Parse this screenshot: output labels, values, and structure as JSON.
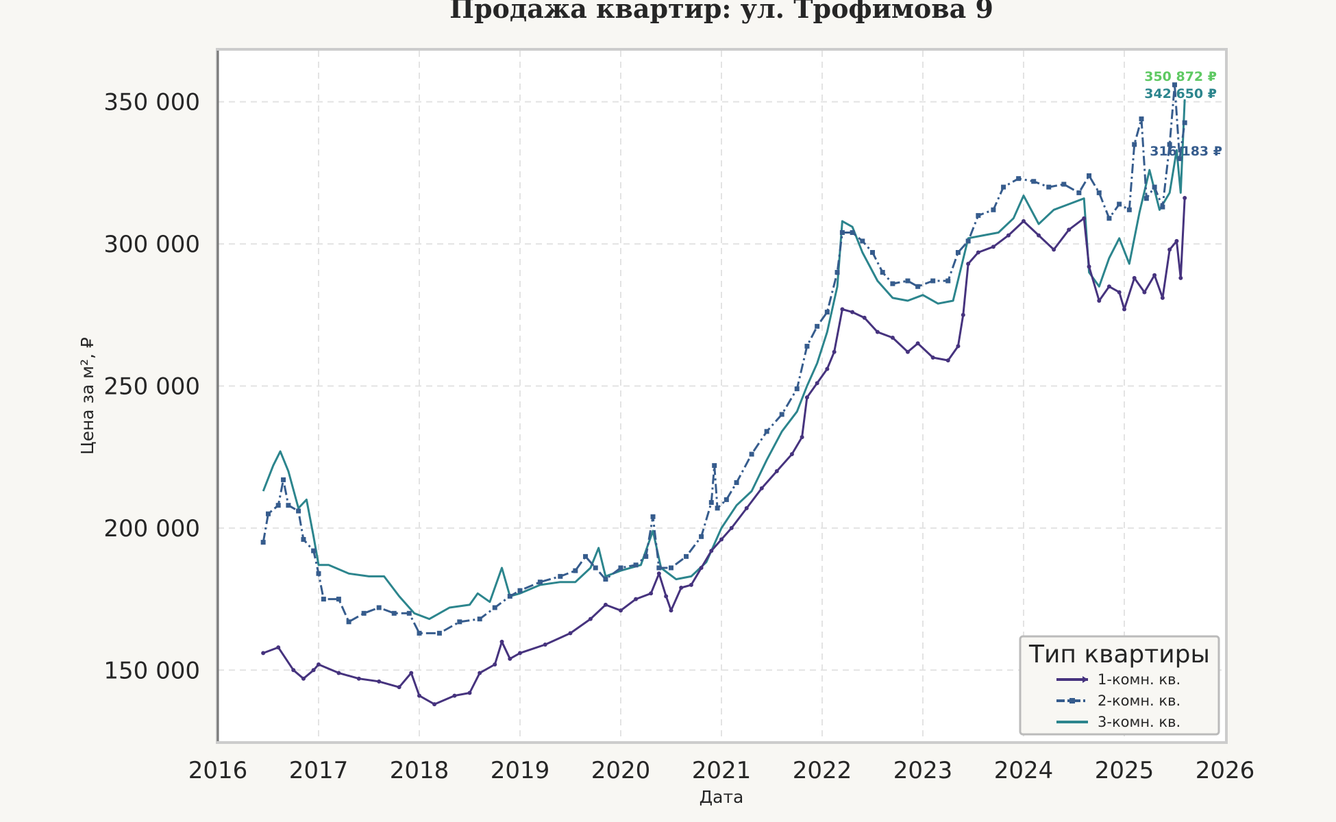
{
  "chart_data": {
    "type": "line",
    "title": "Продажа квартир: ул. Трофимова 9",
    "xlabel": "Дата",
    "ylabel": "Цена за м², ₽",
    "xlim": [
      2016,
      2026
    ],
    "ylim": [
      125000,
      368000
    ],
    "x_ticks": [
      "2016",
      "2017",
      "2018",
      "2019",
      "2020",
      "2021",
      "2022",
      "2023",
      "2024",
      "2025",
      "2026"
    ],
    "y_ticks": [
      {
        "value": 150000,
        "label": "150 000"
      },
      {
        "value": 200000,
        "label": "200 000"
      },
      {
        "value": 250000,
        "label": "250 000"
      },
      {
        "value": 300000,
        "label": "300 000"
      },
      {
        "value": 350000,
        "label": "350 000"
      }
    ],
    "grid": true,
    "legend": {
      "title": "Тип квартиры",
      "position": "lower-right"
    },
    "series": [
      {
        "name": "1-комн. кв.",
        "color": "#46337e",
        "style": "solid-marker",
        "end_label": "316 183 ₽",
        "points": [
          [
            2016.45,
            156000
          ],
          [
            2016.6,
            158000
          ],
          [
            2016.75,
            150000
          ],
          [
            2016.85,
            147000
          ],
          [
            2016.95,
            150000
          ],
          [
            2017.0,
            152000
          ],
          [
            2017.2,
            149000
          ],
          [
            2017.4,
            147000
          ],
          [
            2017.6,
            146000
          ],
          [
            2017.8,
            144000
          ],
          [
            2017.92,
            149000
          ],
          [
            2018.0,
            141000
          ],
          [
            2018.15,
            138000
          ],
          [
            2018.35,
            141000
          ],
          [
            2018.5,
            142000
          ],
          [
            2018.6,
            149000
          ],
          [
            2018.75,
            152000
          ],
          [
            2018.82,
            160000
          ],
          [
            2018.9,
            154000
          ],
          [
            2019.0,
            156000
          ],
          [
            2019.25,
            159000
          ],
          [
            2019.5,
            163000
          ],
          [
            2019.7,
            168000
          ],
          [
            2019.85,
            173000
          ],
          [
            2020.0,
            171000
          ],
          [
            2020.15,
            175000
          ],
          [
            2020.3,
            177000
          ],
          [
            2020.38,
            184000
          ],
          [
            2020.45,
            176000
          ],
          [
            2020.5,
            171000
          ],
          [
            2020.6,
            179000
          ],
          [
            2020.7,
            180000
          ],
          [
            2020.8,
            186000
          ],
          [
            2020.9,
            192000
          ],
          [
            2021.0,
            196000
          ],
          [
            2021.1,
            200000
          ],
          [
            2021.25,
            207000
          ],
          [
            2021.4,
            214000
          ],
          [
            2021.55,
            220000
          ],
          [
            2021.7,
            226000
          ],
          [
            2021.8,
            232000
          ],
          [
            2021.85,
            246000
          ],
          [
            2021.95,
            251000
          ],
          [
            2022.05,
            256000
          ],
          [
            2022.12,
            262000
          ],
          [
            2022.2,
            277000
          ],
          [
            2022.3,
            276000
          ],
          [
            2022.42,
            274000
          ],
          [
            2022.55,
            269000
          ],
          [
            2022.7,
            267000
          ],
          [
            2022.85,
            262000
          ],
          [
            2022.95,
            265000
          ],
          [
            2023.1,
            260000
          ],
          [
            2023.25,
            259000
          ],
          [
            2023.35,
            264000
          ],
          [
            2023.4,
            275000
          ],
          [
            2023.45,
            293000
          ],
          [
            2023.55,
            297000
          ],
          [
            2023.7,
            299000
          ],
          [
            2023.85,
            303000
          ],
          [
            2024.0,
            308000
          ],
          [
            2024.15,
            303000
          ],
          [
            2024.3,
            298000
          ],
          [
            2024.45,
            305000
          ],
          [
            2024.6,
            309000
          ],
          [
            2024.65,
            292000
          ],
          [
            2024.75,
            280000
          ],
          [
            2024.85,
            285000
          ],
          [
            2024.95,
            283000
          ],
          [
            2025.0,
            277000
          ],
          [
            2025.1,
            288000
          ],
          [
            2025.2,
            283000
          ],
          [
            2025.3,
            289000
          ],
          [
            2025.38,
            281000
          ],
          [
            2025.45,
            298000
          ],
          [
            2025.52,
            301000
          ],
          [
            2025.56,
            288000
          ],
          [
            2025.6,
            316183
          ]
        ]
      },
      {
        "name": "2-комн. кв.",
        "color": "#365c8d",
        "style": "dash-dot-square",
        "end_label": "342 650 ₽",
        "points": [
          [
            2016.45,
            195000
          ],
          [
            2016.5,
            205000
          ],
          [
            2016.6,
            208000
          ],
          [
            2016.65,
            217000
          ],
          [
            2016.7,
            208000
          ],
          [
            2016.8,
            206000
          ],
          [
            2016.85,
            196000
          ],
          [
            2016.95,
            192000
          ],
          [
            2017.0,
            184000
          ],
          [
            2017.05,
            175000
          ],
          [
            2017.2,
            175000
          ],
          [
            2017.3,
            167000
          ],
          [
            2017.45,
            170000
          ],
          [
            2017.6,
            172000
          ],
          [
            2017.75,
            170000
          ],
          [
            2017.9,
            170000
          ],
          [
            2018.0,
            163000
          ],
          [
            2018.2,
            163000
          ],
          [
            2018.4,
            167000
          ],
          [
            2018.6,
            168000
          ],
          [
            2018.75,
            172000
          ],
          [
            2018.9,
            176000
          ],
          [
            2019.0,
            178000
          ],
          [
            2019.2,
            181000
          ],
          [
            2019.4,
            183000
          ],
          [
            2019.55,
            185000
          ],
          [
            2019.65,
            190000
          ],
          [
            2019.75,
            186000
          ],
          [
            2019.85,
            182000
          ],
          [
            2020.0,
            186000
          ],
          [
            2020.15,
            187000
          ],
          [
            2020.25,
            190000
          ],
          [
            2020.32,
            204000
          ],
          [
            2020.38,
            186000
          ],
          [
            2020.5,
            186000
          ],
          [
            2020.65,
            190000
          ],
          [
            2020.8,
            197000
          ],
          [
            2020.9,
            209000
          ],
          [
            2020.93,
            222000
          ],
          [
            2020.96,
            207000
          ],
          [
            2021.05,
            210000
          ],
          [
            2021.15,
            216000
          ],
          [
            2021.3,
            226000
          ],
          [
            2021.45,
            234000
          ],
          [
            2021.6,
            240000
          ],
          [
            2021.75,
            249000
          ],
          [
            2021.85,
            264000
          ],
          [
            2021.95,
            271000
          ],
          [
            2022.05,
            276000
          ],
          [
            2022.15,
            290000
          ],
          [
            2022.2,
            304000
          ],
          [
            2022.3,
            304000
          ],
          [
            2022.4,
            301000
          ],
          [
            2022.5,
            297000
          ],
          [
            2022.6,
            290000
          ],
          [
            2022.7,
            286000
          ],
          [
            2022.85,
            287000
          ],
          [
            2022.95,
            285000
          ],
          [
            2023.1,
            287000
          ],
          [
            2023.25,
            287000
          ],
          [
            2023.35,
            297000
          ],
          [
            2023.45,
            301000
          ],
          [
            2023.55,
            310000
          ],
          [
            2023.7,
            312000
          ],
          [
            2023.8,
            320000
          ],
          [
            2023.95,
            323000
          ],
          [
            2024.1,
            322000
          ],
          [
            2024.25,
            320000
          ],
          [
            2024.4,
            321000
          ],
          [
            2024.55,
            318000
          ],
          [
            2024.65,
            324000
          ],
          [
            2024.75,
            318000
          ],
          [
            2024.85,
            309000
          ],
          [
            2024.95,
            314000
          ],
          [
            2025.05,
            312000
          ],
          [
            2025.1,
            335000
          ],
          [
            2025.17,
            344000
          ],
          [
            2025.22,
            316000
          ],
          [
            2025.3,
            320000
          ],
          [
            2025.38,
            313000
          ],
          [
            2025.45,
            335000
          ],
          [
            2025.5,
            356000
          ],
          [
            2025.55,
            330000
          ],
          [
            2025.6,
            342650
          ]
        ]
      },
      {
        "name": "3-комн. кв.",
        "color": "#2c858d",
        "style": "solid",
        "end_label": "350 872 ₽",
        "points": [
          [
            2016.45,
            213000
          ],
          [
            2016.55,
            222000
          ],
          [
            2016.62,
            227000
          ],
          [
            2016.7,
            220000
          ],
          [
            2016.8,
            207000
          ],
          [
            2016.88,
            210000
          ],
          [
            2016.95,
            197000
          ],
          [
            2017.0,
            187000
          ],
          [
            2017.1,
            187000
          ],
          [
            2017.3,
            184000
          ],
          [
            2017.5,
            183000
          ],
          [
            2017.65,
            183000
          ],
          [
            2017.8,
            176000
          ],
          [
            2017.95,
            170000
          ],
          [
            2018.1,
            168000
          ],
          [
            2018.3,
            172000
          ],
          [
            2018.5,
            173000
          ],
          [
            2018.58,
            177000
          ],
          [
            2018.7,
            174000
          ],
          [
            2018.82,
            186000
          ],
          [
            2018.9,
            176000
          ],
          [
            2019.0,
            177000
          ],
          [
            2019.2,
            180000
          ],
          [
            2019.4,
            181000
          ],
          [
            2019.55,
            181000
          ],
          [
            2019.7,
            186000
          ],
          [
            2019.78,
            193000
          ],
          [
            2019.85,
            183000
          ],
          [
            2020.0,
            185000
          ],
          [
            2020.2,
            187000
          ],
          [
            2020.32,
            199000
          ],
          [
            2020.4,
            186000
          ],
          [
            2020.55,
            182000
          ],
          [
            2020.7,
            183000
          ],
          [
            2020.85,
            188000
          ],
          [
            2021.0,
            200000
          ],
          [
            2021.15,
            208000
          ],
          [
            2021.3,
            213000
          ],
          [
            2021.45,
            224000
          ],
          [
            2021.6,
            234000
          ],
          [
            2021.75,
            241000
          ],
          [
            2021.85,
            250000
          ],
          [
            2021.95,
            258000
          ],
          [
            2022.05,
            269000
          ],
          [
            2022.15,
            285000
          ],
          [
            2022.2,
            308000
          ],
          [
            2022.3,
            306000
          ],
          [
            2022.4,
            297000
          ],
          [
            2022.55,
            287000
          ],
          [
            2022.7,
            281000
          ],
          [
            2022.85,
            280000
          ],
          [
            2023.0,
            282000
          ],
          [
            2023.15,
            279000
          ],
          [
            2023.3,
            280000
          ],
          [
            2023.45,
            302000
          ],
          [
            2023.6,
            303000
          ],
          [
            2023.75,
            304000
          ],
          [
            2023.9,
            309000
          ],
          [
            2024.0,
            317000
          ],
          [
            2024.15,
            307000
          ],
          [
            2024.3,
            312000
          ],
          [
            2024.45,
            314000
          ],
          [
            2024.6,
            316000
          ],
          [
            2024.65,
            290000
          ],
          [
            2024.75,
            285000
          ],
          [
            2024.85,
            295000
          ],
          [
            2024.95,
            302000
          ],
          [
            2025.05,
            293000
          ],
          [
            2025.15,
            311000
          ],
          [
            2025.25,
            326000
          ],
          [
            2025.35,
            312000
          ],
          [
            2025.45,
            318000
          ],
          [
            2025.52,
            333000
          ],
          [
            2025.56,
            318000
          ],
          [
            2025.6,
            350872
          ]
        ]
      }
    ]
  }
}
